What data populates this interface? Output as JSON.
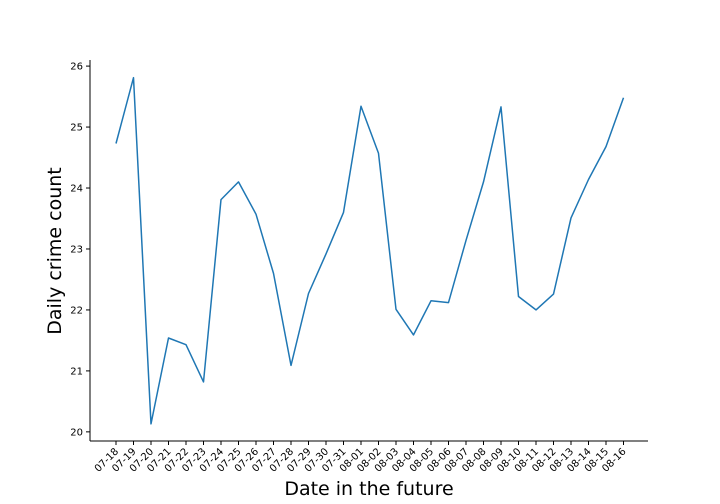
{
  "chart_data": {
    "type": "line",
    "title": "",
    "xlabel": "Date in the future",
    "ylabel": "Daily crime count",
    "ylim": [
      19.85,
      26.1
    ],
    "yticks": [
      20,
      21,
      22,
      23,
      24,
      25,
      26
    ],
    "grid": false,
    "legend": "none",
    "line_color": "#1f77b4",
    "categories": [
      "07-18",
      "07-19",
      "07-20",
      "07-21",
      "07-22",
      "07-23",
      "07-24",
      "07-25",
      "07-26",
      "07-27",
      "07-28",
      "07-29",
      "07-30",
      "07-31",
      "08-01",
      "08-02",
      "08-03",
      "08-04",
      "08-05",
      "08-06",
      "08-07",
      "08-08",
      "08-09",
      "08-10",
      "08-11",
      "08-12",
      "08-13",
      "08-14",
      "08-15",
      "08-16"
    ],
    "values": [
      24.73,
      25.81,
      20.13,
      21.54,
      21.43,
      20.82,
      23.81,
      24.1,
      23.57,
      22.6,
      21.09,
      22.27,
      22.92,
      23.6,
      25.34,
      24.57,
      22.01,
      21.59,
      22.15,
      22.12,
      23.14,
      24.1,
      25.33,
      22.22,
      22.0,
      22.26,
      23.51,
      24.14,
      24.68,
      25.48
    ]
  }
}
